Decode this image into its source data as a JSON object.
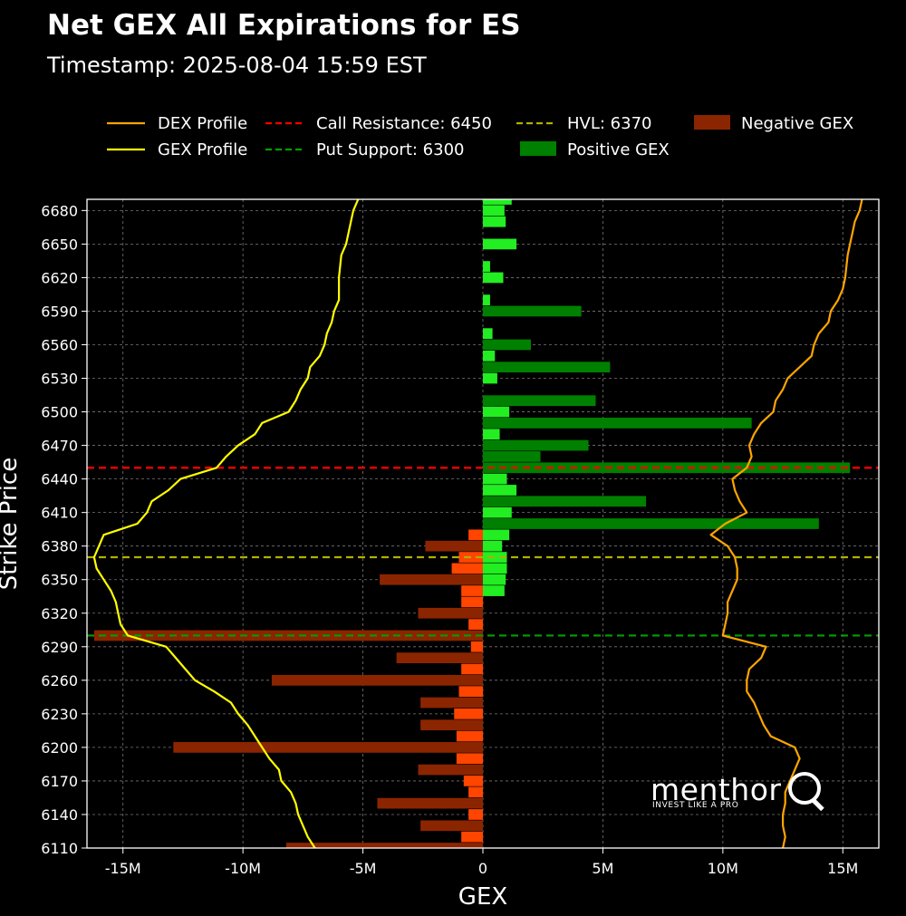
{
  "header": {
    "title": "Net GEX All Expirations for ES",
    "subtitle": "Timestamp: 2025-08-04 15:59 EST"
  },
  "branding": {
    "word": "menthor",
    "tagline": "INVEST LIKE A PRO"
  },
  "colors": {
    "background": "#000000",
    "dex": "#FFA500",
    "gex": "#FFFF00",
    "call_resistance": "#FF0000",
    "put_support": "#00A000",
    "hvl": "#B0B000",
    "positive": "#008000",
    "positive_near": "#22EE22",
    "negative": "#8B2500",
    "negative_near": "#FF4500"
  },
  "chart_data": {
    "type": "bar",
    "orientation": "horizontal",
    "xlabel": "GEX",
    "ylabel": "Strike Price",
    "xlim": [
      -16500000,
      16500000
    ],
    "ylim": [
      6110,
      6690
    ],
    "x_ticks": [
      -15000000,
      -10000000,
      -5000000,
      0,
      5000000,
      10000000,
      15000000
    ],
    "x_tick_labels": [
      "-15M",
      "-10M",
      "-5M",
      "0",
      "5M",
      "10M",
      "15M"
    ],
    "y_ticks": [
      6110,
      6140,
      6170,
      6200,
      6230,
      6260,
      6290,
      6320,
      6350,
      6380,
      6410,
      6440,
      6470,
      6500,
      6530,
      6560,
      6590,
      6620,
      6650,
      6680
    ],
    "grid": true,
    "legend_position": "top",
    "legend": [
      {
        "label": "DEX Profile",
        "kind": "line",
        "color": "#FFA500"
      },
      {
        "label": "GEX Profile",
        "kind": "line",
        "color": "#FFFF00"
      },
      {
        "label": "Call Resistance: 6450",
        "kind": "dash",
        "color": "#FF0000"
      },
      {
        "label": "Put Support: 6300",
        "kind": "dash",
        "color": "#00A000"
      },
      {
        "label": "HVL: 6370",
        "kind": "dash",
        "color": "#B0B000"
      },
      {
        "label": "Positive GEX",
        "kind": "patch",
        "color": "#008000"
      },
      {
        "label": "Negative GEX",
        "kind": "patch",
        "color": "#8B2500"
      }
    ],
    "reference_lines": [
      {
        "name": "Call Resistance",
        "value": 6450,
        "color": "#FF0000"
      },
      {
        "name": "Put Support",
        "value": 6300,
        "color": "#00A000"
      },
      {
        "name": "HVL",
        "value": 6370,
        "color": "#B0B000"
      }
    ],
    "series": [
      {
        "name": "Positive GEX",
        "strikes": [
          6690,
          6680,
          6670,
          6650,
          6630,
          6620,
          6600,
          6590,
          6570,
          6560,
          6550,
          6540,
          6530,
          6510,
          6500,
          6490,
          6480,
          6470,
          6460,
          6450,
          6440,
          6430,
          6420,
          6410,
          6400,
          6390,
          6380,
          6370,
          6360,
          6350,
          6340
        ],
        "values": [
          1200000,
          900000,
          950000,
          1400000,
          300000,
          850000,
          300000,
          4100000,
          400000,
          2000000,
          500000,
          5300000,
          600000,
          4700000,
          1100000,
          11200000,
          700000,
          4400000,
          2400000,
          15300000,
          1000000,
          1400000,
          6800000,
          1200000,
          14000000,
          1100000,
          800000,
          1000000,
          1000000,
          950000,
          900000
        ]
      },
      {
        "name": "Negative GEX",
        "strikes": [
          6390,
          6380,
          6370,
          6360,
          6350,
          6340,
          6330,
          6320,
          6310,
          6300,
          6290,
          6280,
          6270,
          6260,
          6250,
          6240,
          6230,
          6220,
          6210,
          6200,
          6190,
          6180,
          6170,
          6160,
          6150,
          6140,
          6130,
          6120,
          6110
        ],
        "values": [
          -600000,
          -2400000,
          -1000000,
          -1300000,
          -4300000,
          -900000,
          -900000,
          -2700000,
          -600000,
          -16200000,
          -500000,
          -3600000,
          -900000,
          -8800000,
          -1000000,
          -2600000,
          -1200000,
          -2600000,
          -1100000,
          -12900000,
          -1100000,
          -2700000,
          -800000,
          -600000,
          -4400000,
          -600000,
          -2600000,
          -900000,
          -8200000
        ]
      },
      {
        "name": "GEX Profile",
        "strikes": [
          6690,
          6680,
          6670,
          6650,
          6640,
          6620,
          6600,
          6590,
          6580,
          6570,
          6560,
          6550,
          6540,
          6530,
          6520,
          6510,
          6500,
          6490,
          6480,
          6470,
          6460,
          6450,
          6440,
          6430,
          6420,
          6410,
          6400,
          6390,
          6380,
          6370,
          6360,
          6350,
          6340,
          6330,
          6320,
          6310,
          6300,
          6290,
          6280,
          6270,
          6260,
          6250,
          6240,
          6230,
          6220,
          6210,
          6200,
          6190,
          6180,
          6170,
          6160,
          6150,
          6140,
          6130,
          6120,
          6110
        ],
        "values": [
          -5200000,
          -5400000,
          -5500000,
          -5700000,
          -5900000,
          -6000000,
          -6000000,
          -6200000,
          -6300000,
          -6500000,
          -6600000,
          -6800000,
          -7200000,
          -7300000,
          -7600000,
          -7800000,
          -8100000,
          -9200000,
          -9500000,
          -10200000,
          -10700000,
          -11100000,
          -12600000,
          -13100000,
          -13800000,
          -14000000,
          -14400000,
          -15800000,
          -16000000,
          -16200000,
          -16100000,
          -15800000,
          -15500000,
          -15300000,
          -15200000,
          -15100000,
          -14800000,
          -13200000,
          -12800000,
          -12400000,
          -12000000,
          -11200000,
          -10500000,
          -10200000,
          -9800000,
          -9500000,
          -9200000,
          -8900000,
          -8500000,
          -8400000,
          -8000000,
          -7800000,
          -7700000,
          -7500000,
          -7300000,
          -7000000
        ]
      },
      {
        "name": "DEX Profile",
        "strikes": [
          6690,
          6680,
          6670,
          6660,
          6650,
          6640,
          6620,
          6610,
          6600,
          6590,
          6580,
          6570,
          6560,
          6550,
          6540,
          6530,
          6520,
          6510,
          6500,
          6490,
          6480,
          6470,
          6460,
          6450,
          6440,
          6430,
          6420,
          6410,
          6400,
          6390,
          6380,
          6370,
          6360,
          6350,
          6340,
          6330,
          6320,
          6310,
          6300,
          6290,
          6280,
          6270,
          6260,
          6250,
          6240,
          6230,
          6220,
          6210,
          6200,
          6190,
          6180,
          6170,
          6160,
          6150,
          6140,
          6130,
          6120,
          6110
        ],
        "values": [
          15800000,
          15700000,
          15500000,
          15400000,
          15300000,
          15200000,
          15100000,
          15000000,
          14800000,
          14500000,
          14400000,
          14000000,
          13800000,
          13700000,
          13200000,
          12700000,
          12500000,
          12200000,
          12100000,
          11600000,
          11300000,
          11100000,
          11200000,
          11000000,
          10400000,
          10500000,
          10700000,
          11000000,
          10100000,
          9500000,
          10200000,
          10500000,
          10600000,
          10600000,
          10400000,
          10200000,
          10200000,
          10100000,
          10000000,
          11800000,
          11600000,
          11100000,
          11000000,
          11000000,
          11300000,
          11500000,
          11700000,
          12000000,
          13000000,
          13200000,
          13000000,
          12800000,
          12600000,
          12600000,
          12500000,
          12500000,
          12600000,
          12500000
        ]
      }
    ]
  }
}
